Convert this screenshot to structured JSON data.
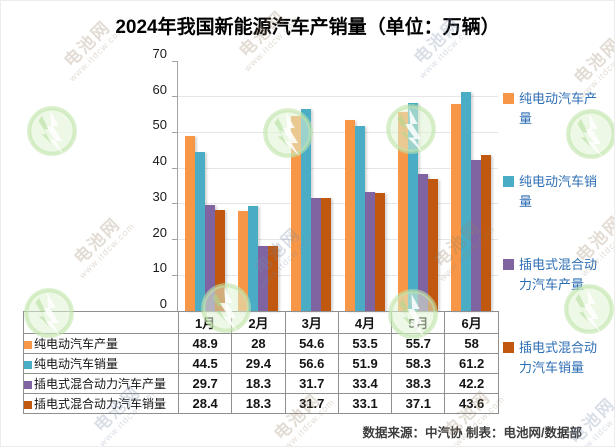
{
  "title": "2024年我国新能源汽车产销量（单位：万辆）",
  "chart_data": {
    "type": "bar",
    "categories": [
      "1月",
      "2月",
      "3月",
      "4月",
      "5月",
      "6月"
    ],
    "series": [
      {
        "name": "纯电动汽车产量",
        "color": "#F79646",
        "values": [
          48.9,
          28,
          54.6,
          53.5,
          55.7,
          58
        ]
      },
      {
        "name": "纯电动汽车销量",
        "color": "#4BACC6",
        "values": [
          44.5,
          29.4,
          56.6,
          51.9,
          58.3,
          61.2
        ]
      },
      {
        "name": "插电式混合动力汽车产量",
        "color": "#8064A2",
        "values": [
          29.7,
          18.3,
          31.7,
          33.4,
          38.3,
          42.2
        ]
      },
      {
        "name": "插电式混合动力汽车销量",
        "color": "#C0580F",
        "values": [
          28.4,
          18.3,
          31.7,
          33.1,
          37.1,
          43.6
        ]
      }
    ],
    "title": "2024年我国新能源汽车产销量（单位：万辆）",
    "xlabel": "",
    "ylabel": "",
    "ylim": [
      0,
      70
    ],
    "yticks": [
      0,
      10,
      20,
      30,
      40,
      50,
      60,
      70
    ],
    "grid": true,
    "legend_position": "right"
  },
  "table": {
    "months": [
      "1月",
      "2月",
      "3月",
      "4月",
      "5月",
      "6月"
    ],
    "rows": [
      {
        "label": "纯电动汽车产量",
        "color": "#F79646",
        "values": [
          "48.9",
          "28",
          "54.6",
          "53.5",
          "55.7",
          "58"
        ]
      },
      {
        "label": "纯电动汽车销量",
        "color": "#4BACC6",
        "values": [
          "44.5",
          "29.4",
          "56.6",
          "51.9",
          "58.3",
          "61.2"
        ]
      },
      {
        "label": "插电式混合动力汽车产量",
        "color": "#8064A2",
        "values": [
          "29.7",
          "18.3",
          "31.7",
          "33.4",
          "38.3",
          "42.2"
        ]
      },
      {
        "label": "插电式混合动力汽车销量",
        "color": "#C0580F",
        "values": [
          "28.4",
          "18.3",
          "31.7",
          "33.1",
          "37.1",
          "43.6"
        ]
      }
    ]
  },
  "legend": {
    "items": [
      {
        "label": "纯电动汽车产量",
        "color": "#F79646"
      },
      {
        "label": "纯电动汽车销量",
        "color": "#4BACC6"
      },
      {
        "label": "插电式混合动力汽车产量",
        "color": "#8064A2"
      },
      {
        "label": "插电式混合动力汽车销量",
        "color": "#C0580F"
      }
    ]
  },
  "footer": {
    "text": "数据来源：中汽协  制表：电池网/数据部"
  },
  "watermark": {
    "brand": "电池网",
    "url": "www.itdcw.com"
  }
}
